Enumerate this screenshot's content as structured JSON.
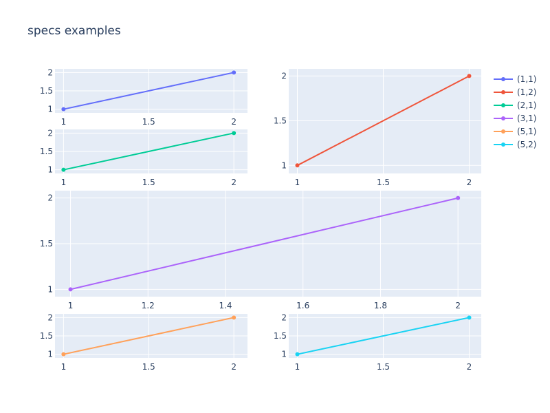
{
  "chart_data": {
    "type": "line",
    "title": "specs examples",
    "legend_placement": "top-right",
    "grid": true,
    "series": [
      {
        "name": "(1,1)",
        "color": "#636efa",
        "x": [
          1,
          2
        ],
        "y": [
          1,
          2
        ]
      },
      {
        "name": "(1,2)",
        "color": "#ef553b",
        "x": [
          1,
          2
        ],
        "y": [
          1,
          2
        ]
      },
      {
        "name": "(2,1)",
        "color": "#00cc96",
        "x": [
          1,
          2
        ],
        "y": [
          1,
          2
        ]
      },
      {
        "name": "(3,1)",
        "color": "#ab63fa",
        "x": [
          1,
          2
        ],
        "y": [
          1,
          2
        ]
      },
      {
        "name": "(5,1)",
        "color": "#ffa15a",
        "x": [
          1,
          2
        ],
        "y": [
          1,
          2
        ]
      },
      {
        "name": "(5,2)",
        "color": "#19d3f3",
        "x": [
          1,
          2
        ],
        "y": [
          1,
          2
        ]
      }
    ],
    "subplots": [
      {
        "id": "sp-1-1",
        "series": 0,
        "xlim": [
          0.95,
          2.08
        ],
        "ylim": [
          0.9,
          2.1
        ],
        "xticks": [
          {
            "v": 1,
            "label": "1"
          },
          {
            "v": 1.5,
            "label": "1.5"
          },
          {
            "v": 2,
            "label": "2"
          }
        ],
        "yticks": [
          {
            "v": 1,
            "label": "1"
          },
          {
            "v": 1.5,
            "label": "1.5"
          },
          {
            "v": 2,
            "label": "2"
          }
        ]
      },
      {
        "id": "sp-1-2",
        "series": 1,
        "xlim": [
          0.95,
          2.07
        ],
        "ylim": [
          0.91,
          2.08
        ],
        "xticks": [
          {
            "v": 1,
            "label": "1"
          },
          {
            "v": 1.5,
            "label": "1.5"
          },
          {
            "v": 2,
            "label": "2"
          }
        ],
        "yticks": [
          {
            "v": 1,
            "label": "1"
          },
          {
            "v": 1.5,
            "label": "1.5"
          },
          {
            "v": 2,
            "label": "2"
          }
        ]
      },
      {
        "id": "sp-2-1",
        "series": 2,
        "xlim": [
          0.95,
          2.08
        ],
        "ylim": [
          0.9,
          2.1
        ],
        "xticks": [
          {
            "v": 1,
            "label": "1"
          },
          {
            "v": 1.5,
            "label": "1.5"
          },
          {
            "v": 2,
            "label": "2"
          }
        ],
        "yticks": [
          {
            "v": 1,
            "label": "1"
          },
          {
            "v": 1.5,
            "label": "1.5"
          },
          {
            "v": 2,
            "label": "2"
          }
        ]
      },
      {
        "id": "sp-3-1",
        "series": 3,
        "xlim": [
          0.96,
          2.06
        ],
        "ylim": [
          0.92,
          2.08
        ],
        "xticks": [
          {
            "v": 1,
            "label": "1"
          },
          {
            "v": 1.2,
            "label": "1.2"
          },
          {
            "v": 1.4,
            "label": "1.4"
          },
          {
            "v": 1.6,
            "label": "1.6"
          },
          {
            "v": 1.8,
            "label": "1.8"
          },
          {
            "v": 2,
            "label": "2"
          }
        ],
        "yticks": [
          {
            "v": 1,
            "label": "1"
          },
          {
            "v": 1.5,
            "label": "1.5"
          },
          {
            "v": 2,
            "label": "2"
          }
        ]
      },
      {
        "id": "sp-5-1",
        "series": 4,
        "xlim": [
          0.95,
          2.08
        ],
        "ylim": [
          0.9,
          2.1
        ],
        "xticks": [
          {
            "v": 1,
            "label": "1"
          },
          {
            "v": 1.5,
            "label": "1.5"
          },
          {
            "v": 2,
            "label": "2"
          }
        ],
        "yticks": [
          {
            "v": 1,
            "label": "1"
          },
          {
            "v": 1.5,
            "label": "1.5"
          },
          {
            "v": 2,
            "label": "2"
          }
        ]
      },
      {
        "id": "sp-5-2",
        "series": 5,
        "xlim": [
          0.95,
          2.07
        ],
        "ylim": [
          0.9,
          2.1
        ],
        "xticks": [
          {
            "v": 1,
            "label": "1"
          },
          {
            "v": 1.5,
            "label": "1.5"
          },
          {
            "v": 2,
            "label": "2"
          }
        ],
        "yticks": [
          {
            "v": 1,
            "label": "1"
          },
          {
            "v": 1.5,
            "label": "1.5"
          },
          {
            "v": 2,
            "label": "2"
          }
        ]
      }
    ]
  }
}
